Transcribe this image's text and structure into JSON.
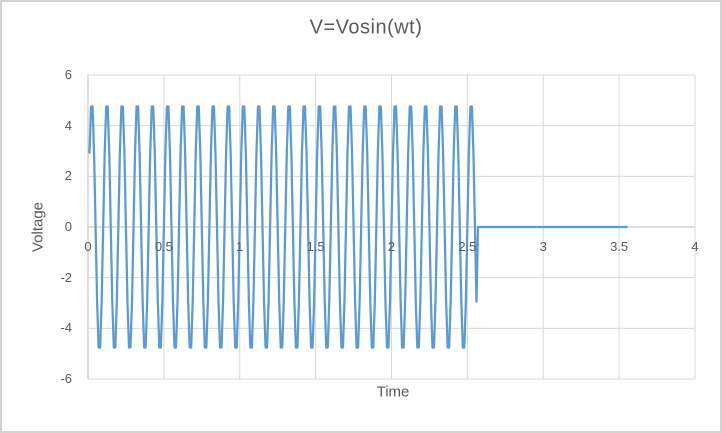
{
  "window": {
    "background": "#ffffff",
    "border_color": "#d2d2d2"
  },
  "chart_data": {
    "type": "line",
    "title": "V=Vosin(wt)",
    "xlabel": "Time",
    "ylabel": "Voltage",
    "xlim": [
      0,
      4
    ],
    "ylim": [
      -6,
      6
    ],
    "x_tick_labels": [
      "0",
      "0.5",
      "1",
      "1.5",
      "2",
      "2.5",
      "3",
      "3.5",
      "4"
    ],
    "y_tick_labels": [
      "6",
      "4",
      "2",
      "0",
      "-2",
      "-4",
      "-6"
    ],
    "grid": true,
    "legend": "none",
    "colors": {
      "line": "#5B9BD5",
      "gridline": "#D9D9D9",
      "axis_line": "#BFBFBF",
      "text": "#595959"
    },
    "series": [
      {
        "name": "V",
        "description": "V = 5*sin(2*pi*10*t) sampled at dt=0.01 from t=0.01 to t=2.56 (sampling flattens peaks at +/-4.76), then V=0 from t=2.57 to t=3.55",
        "generator": {
          "amplitude": 5,
          "frequency_hz": 10,
          "dt": 0.01,
          "sine_t_start": 0.01,
          "sine_t_end": 2.56,
          "zero_t_start": 2.57,
          "zero_t_end": 3.55
        },
        "observed": {
          "period": 0.1,
          "cycles_visible": 25.5,
          "sample_peak_value": 4.76,
          "sample_trough_value": -4.76,
          "first_point": [
            0.01,
            2.94
          ],
          "last_sine_point": [
            2.56,
            -2.94
          ],
          "flat_segment_value": 0,
          "flat_segment_start": 2.57,
          "flat_segment_end": 3.55
        }
      }
    ]
  }
}
